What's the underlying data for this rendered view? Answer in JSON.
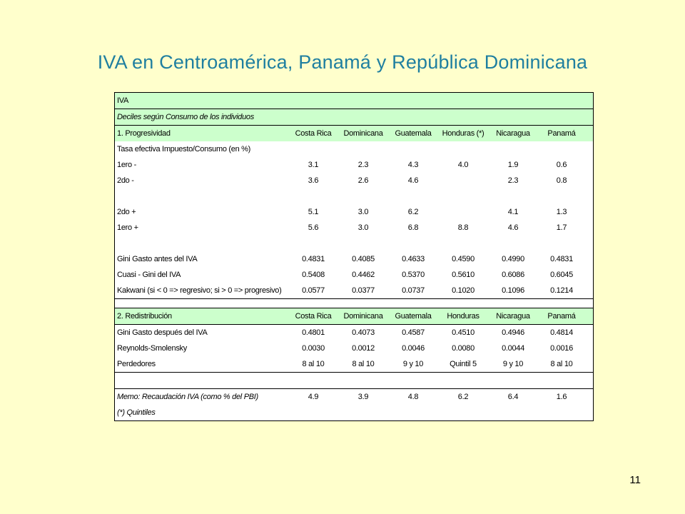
{
  "slide": {
    "title": "IVA en Centroamérica, Panamá y República Dominicana",
    "number": "11"
  },
  "table": {
    "header1": "IVA",
    "header2": "Deciles según Consumo de los individuos",
    "section1": {
      "title": "1. Progresividad",
      "columns": [
        "Costa Rica",
        "Dominicana",
        "Guatemala",
        "Honduras (*)",
        "Nicaragua",
        "Panamá"
      ],
      "subheader": "Tasa efectiva Impuesto/Consumo (en %)",
      "rows_a": [
        {
          "label": "1ero -",
          "values": [
            "3.1",
            "2.3",
            "4.3",
            "4.0",
            "1.9",
            "0.6"
          ]
        },
        {
          "label": "2do -",
          "values": [
            "3.6",
            "2.6",
            "4.6",
            "",
            "2.3",
            "0.8"
          ]
        }
      ],
      "rows_b": [
        {
          "label": "2do +",
          "values": [
            "5.1",
            "3.0",
            "6.2",
            "",
            "4.1",
            "1.3"
          ]
        },
        {
          "label": "1ero +",
          "values": [
            "5.6",
            "3.0",
            "6.8",
            "8.8",
            "4.6",
            "1.7"
          ]
        }
      ],
      "rows_c": [
        {
          "label": "Gini Gasto antes del IVA",
          "values": [
            "0.4831",
            "0.4085",
            "0.4633",
            "0.4590",
            "0.4990",
            "0.4831"
          ]
        },
        {
          "label": "Cuasi - Gini del IVA",
          "values": [
            "0.5408",
            "0.4462",
            "0.5370",
            "0.5610",
            "0.6086",
            "0.6045"
          ]
        },
        {
          "label": "Kakwani (si < 0 => regresivo; si > 0 => progresivo)",
          "values": [
            "0.0577",
            "0.0377",
            "0.0737",
            "0.1020",
            "0.1096",
            "0.1214"
          ]
        }
      ]
    },
    "section2": {
      "title": "2. Redistribución",
      "columns": [
        "Costa Rica",
        "Dominicana",
        "Guatemala",
        "Honduras",
        "Nicaragua",
        "Panamá"
      ],
      "rows": [
        {
          "label": "Gini Gasto después del IVA",
          "values": [
            "0.4801",
            "0.4073",
            "0.4587",
            "0.4510",
            "0.4946",
            "0.4814"
          ]
        },
        {
          "label": "Reynolds-Smolensky",
          "values": [
            "0.0030",
            "0.0012",
            "0.0046",
            "0.0080",
            "0.0044",
            "0.0016"
          ]
        },
        {
          "label": "Perdedores",
          "values": [
            "8 al 10",
            "8 al 10",
            "9 y 10",
            "Quintil 5",
            "9 y 10",
            "8 al 10"
          ]
        }
      ]
    },
    "memo": {
      "label": "Memo: Recaudación IVA (como % del PBI)",
      "values": [
        "4.9",
        "3.9",
        "4.8",
        "6.2",
        "6.4",
        "1.6"
      ],
      "footnote": "(*) Quintiles"
    }
  },
  "colors": {
    "background": "#FFFFCC",
    "title": "#1F7FA0",
    "row_highlight": "#CCFFCC"
  }
}
